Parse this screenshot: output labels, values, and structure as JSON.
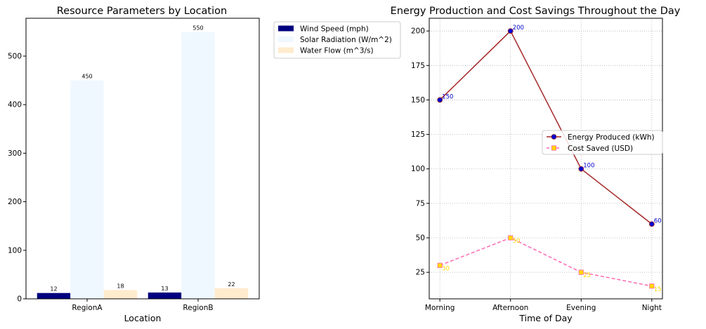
{
  "chart_data": [
    {
      "type": "bar",
      "title": "Resource Parameters by Location",
      "xlabel": "Location",
      "ylabel": "",
      "categories": [
        "RegionA",
        "RegionB"
      ],
      "series": [
        {
          "name": "Wind Speed (mph)",
          "values": [
            12,
            13
          ],
          "color": "#000080"
        },
        {
          "name": "Solar Radiation (W/m^2)",
          "values": [
            450,
            550
          ],
          "color": "#f0f8ff"
        },
        {
          "name": "Water Flow (m^3/s)",
          "values": [
            18,
            22
          ],
          "color": "#ffebcd"
        }
      ],
      "data_labels": [
        "12",
        "450",
        "18",
        "13",
        "550",
        "22"
      ],
      "ylim": [
        0,
        578
      ],
      "yticks": [
        "0",
        "100",
        "200",
        "300",
        "400",
        "500"
      ],
      "grid": false,
      "legend": "outside-top-right"
    },
    {
      "type": "line",
      "title": "Energy Production and Cost Savings Throughout the Day",
      "xlabel": "Time of Day",
      "ylabel": "",
      "categories": [
        "Morning",
        "Afternoon",
        "Evening",
        "Night"
      ],
      "series": [
        {
          "name": "Energy Produced (kWh)",
          "values": [
            150,
            200,
            100,
            60
          ],
          "color": "#a52a2a",
          "marker_color": "#0000cd",
          "label_color": "#0000cd",
          "linestyle": "solid",
          "marker": "circle"
        },
        {
          "name": "Cost Saved (USD)",
          "values": [
            30,
            50,
            25,
            15
          ],
          "color": "#ff69b4",
          "marker_color": "#ffd700",
          "label_color": "#ffd700",
          "linestyle": "dashed",
          "marker": "square"
        }
      ],
      "data_labels": [
        [
          "150",
          "200",
          "100",
          "60"
        ],
        [
          "30",
          "50",
          "25",
          "15"
        ]
      ],
      "ylim": [
        5.75,
        209.25
      ],
      "yticks": [
        "25",
        "50",
        "75",
        "100",
        "125",
        "150",
        "175",
        "200"
      ],
      "grid": true,
      "legend": "center-right"
    }
  ]
}
